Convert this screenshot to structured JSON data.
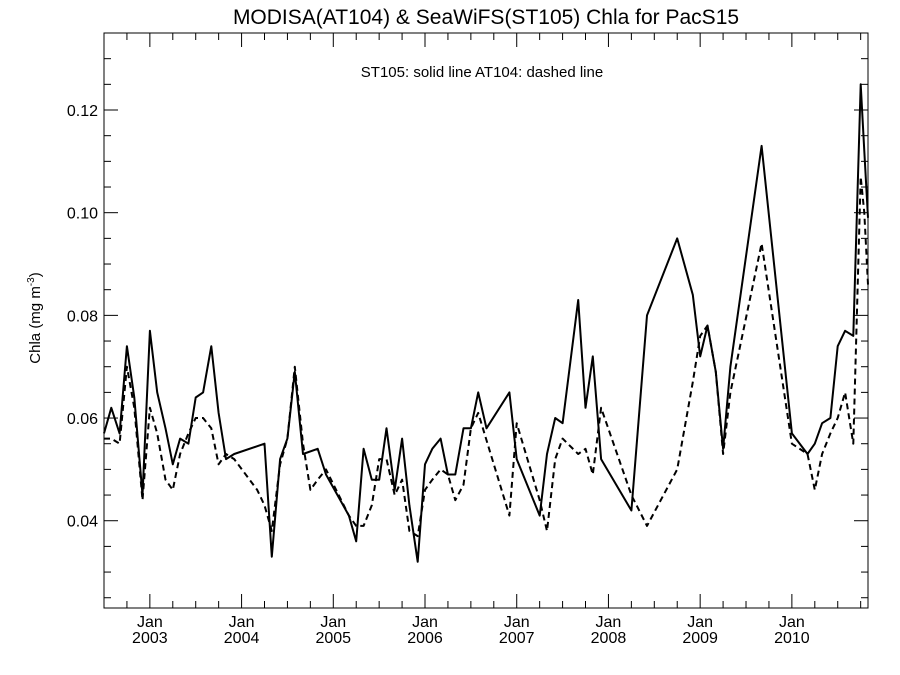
{
  "chart_data": {
    "type": "line",
    "title": "MODISA(AT104) & SeaWiFS(ST105)  Chla for PacS15",
    "annotation": "ST105: solid line   AT104: dashed line",
    "ylabel": {
      "main": "Chla (mg m",
      "sup": "-3",
      "close": ")"
    },
    "xlabel": "",
    "xlim": [
      2002.5,
      2010.83
    ],
    "ylim": [
      0.023,
      0.135
    ],
    "yticks": [
      0.04,
      0.06,
      0.08,
      0.1,
      0.12
    ],
    "ytick_labels": [
      "0.04",
      "0.06",
      "0.08",
      "0.10",
      "0.12"
    ],
    "xticks": [
      {
        "x": 2003.0,
        "top": "Jan",
        "bottom": "2003"
      },
      {
        "x": 2004.0,
        "top": "Jan",
        "bottom": "2004"
      },
      {
        "x": 2005.0,
        "top": "Jan",
        "bottom": "2005"
      },
      {
        "x": 2006.0,
        "top": "Jan",
        "bottom": "2006"
      },
      {
        "x": 2007.0,
        "top": "Jan",
        "bottom": "2007"
      },
      {
        "x": 2008.0,
        "top": "Jan",
        "bottom": "2008"
      },
      {
        "x": 2009.0,
        "top": "Jan",
        "bottom": "2009"
      },
      {
        "x": 2010.0,
        "top": "Jan",
        "bottom": "2010"
      }
    ],
    "grid": false,
    "series": [
      {
        "name": "ST105",
        "style": "solid",
        "x": [
          2002.5,
          2002.58,
          2002.67,
          2002.75,
          2002.83,
          2002.92,
          2003.0,
          2003.08,
          2003.17,
          2003.25,
          2003.33,
          2003.42,
          2003.5,
          2003.58,
          2003.67,
          2003.75,
          2003.83,
          2003.92,
          2004.25,
          2004.33,
          2004.42,
          2004.5,
          2004.58,
          2004.67,
          2004.83,
          2004.92,
          2005.17,
          2005.25,
          2005.33,
          2005.42,
          2005.5,
          2005.58,
          2005.67,
          2005.75,
          2005.83,
          2005.92,
          2006.0,
          2006.08,
          2006.17,
          2006.25,
          2006.33,
          2006.42,
          2006.5,
          2006.58,
          2006.67,
          2006.92,
          2007.0,
          2007.25,
          2007.33,
          2007.42,
          2007.5,
          2007.67,
          2007.75,
          2007.83,
          2007.92,
          2008.25,
          2008.42,
          2008.75,
          2008.92,
          2009.0,
          2009.08,
          2009.17,
          2009.25,
          2009.33,
          2009.67,
          2010.0,
          2010.17,
          2010.25,
          2010.33,
          2010.42,
          2010.5,
          2010.58,
          2010.67,
          2010.75,
          2010.79,
          2010.83
        ],
        "values": [
          0.057,
          0.062,
          0.057,
          0.074,
          0.064,
          0.045,
          0.077,
          0.065,
          0.058,
          0.051,
          0.056,
          0.055,
          0.064,
          0.065,
          0.074,
          0.061,
          0.052,
          0.053,
          0.055,
          0.033,
          0.052,
          0.056,
          0.069,
          0.053,
          0.054,
          0.049,
          0.041,
          0.036,
          0.054,
          0.048,
          0.048,
          0.058,
          0.046,
          0.056,
          0.043,
          0.032,
          0.051,
          0.054,
          0.056,
          0.049,
          0.049,
          0.058,
          0.058,
          0.065,
          0.058,
          0.065,
          0.052,
          0.041,
          0.053,
          0.06,
          0.059,
          0.083,
          0.062,
          0.072,
          0.052,
          0.042,
          0.08,
          0.095,
          0.084,
          0.072,
          0.078,
          0.069,
          0.054,
          0.07,
          0.113,
          0.057,
          0.053,
          0.055,
          0.059,
          0.06,
          0.074,
          0.077,
          0.076,
          0.125,
          0.112,
          0.099
        ]
      },
      {
        "name": "AT104",
        "style": "dashed",
        "x": [
          2002.5,
          2002.58,
          2002.67,
          2002.75,
          2002.83,
          2002.92,
          2003.0,
          2003.08,
          2003.17,
          2003.25,
          2003.33,
          2003.42,
          2003.5,
          2003.58,
          2003.67,
          2003.75,
          2003.83,
          2003.92,
          2004.17,
          2004.25,
          2004.33,
          2004.42,
          2004.5,
          2004.58,
          2004.67,
          2004.75,
          2004.83,
          2004.92,
          2005.17,
          2005.25,
          2005.33,
          2005.42,
          2005.5,
          2005.58,
          2005.67,
          2005.75,
          2005.83,
          2005.92,
          2006.0,
          2006.08,
          2006.17,
          2006.25,
          2006.33,
          2006.42,
          2006.5,
          2006.58,
          2006.92,
          2007.0,
          2007.25,
          2007.33,
          2007.42,
          2007.5,
          2007.67,
          2007.75,
          2007.83,
          2007.92,
          2008.25,
          2008.42,
          2008.75,
          2008.92,
          2009.0,
          2009.08,
          2009.17,
          2009.25,
          2009.33,
          2009.67,
          2010.0,
          2010.17,
          2010.25,
          2010.33,
          2010.42,
          2010.5,
          2010.58,
          2010.67,
          2010.75,
          2010.79,
          2010.83
        ],
        "values": [
          0.056,
          0.056,
          0.055,
          0.07,
          0.062,
          0.044,
          0.062,
          0.057,
          0.048,
          0.046,
          0.053,
          0.057,
          0.06,
          0.06,
          0.058,
          0.051,
          0.053,
          0.052,
          0.046,
          0.043,
          0.038,
          0.051,
          0.056,
          0.07,
          0.055,
          0.046,
          0.048,
          0.05,
          0.041,
          0.039,
          0.039,
          0.043,
          0.052,
          0.052,
          0.045,
          0.048,
          0.038,
          0.037,
          0.046,
          0.048,
          0.05,
          0.049,
          0.044,
          0.047,
          0.058,
          0.061,
          0.041,
          0.059,
          0.044,
          0.038,
          0.052,
          0.056,
          0.053,
          0.054,
          0.049,
          0.062,
          0.045,
          0.039,
          0.05,
          0.067,
          0.076,
          0.078,
          0.069,
          0.053,
          0.065,
          0.094,
          0.055,
          0.053,
          0.046,
          0.053,
          0.057,
          0.06,
          0.065,
          0.055,
          0.107,
          0.1,
          0.086
        ]
      }
    ]
  }
}
